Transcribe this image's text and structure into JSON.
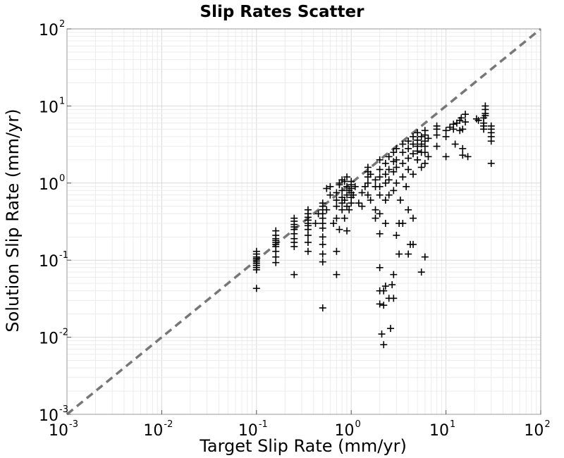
{
  "chart_data": {
    "type": "scatter",
    "title": "Slip Rates Scatter",
    "xlabel": "Target Slip Rate (mm/yr)",
    "ylabel": "Solution Slip Rate (mm/yr)",
    "xscale": "log",
    "yscale": "log",
    "xlim": [
      0.001,
      100
    ],
    "ylim": [
      0.001,
      100
    ],
    "x_ticks": [
      {
        "base": "10",
        "exp": "-3"
      },
      {
        "base": "10",
        "exp": "-2"
      },
      {
        "base": "10",
        "exp": "-1"
      },
      {
        "base": "10",
        "exp": "0"
      },
      {
        "base": "10",
        "exp": "1"
      },
      {
        "base": "10",
        "exp": "2"
      }
    ],
    "y_ticks": [
      {
        "base": "10",
        "exp": "-3"
      },
      {
        "base": "10",
        "exp": "-2"
      },
      {
        "base": "10",
        "exp": "-1"
      },
      {
        "base": "10",
        "exp": "0"
      },
      {
        "base": "10",
        "exp": "1"
      },
      {
        "base": "10",
        "exp": "2"
      }
    ],
    "grid": true,
    "marker": "+",
    "marker_color": "#000000",
    "reference_line": {
      "x": [
        0.001,
        100
      ],
      "y": [
        0.001,
        100
      ],
      "style": "dashed",
      "color": "#777777"
    },
    "points": [
      [
        0.1,
        0.043
      ],
      [
        0.1,
        0.075
      ],
      [
        0.1,
        0.08
      ],
      [
        0.1,
        0.085
      ],
      [
        0.1,
        0.09
      ],
      [
        0.1,
        0.095
      ],
      [
        0.1,
        0.1
      ],
      [
        0.1,
        0.105
      ],
      [
        0.1,
        0.11
      ],
      [
        0.1,
        0.12
      ],
      [
        0.1,
        0.13
      ],
      [
        0.16,
        0.093
      ],
      [
        0.16,
        0.11
      ],
      [
        0.16,
        0.13
      ],
      [
        0.16,
        0.15
      ],
      [
        0.16,
        0.16
      ],
      [
        0.16,
        0.17
      ],
      [
        0.16,
        0.18
      ],
      [
        0.16,
        0.19
      ],
      [
        0.16,
        0.21
      ],
      [
        0.16,
        0.24
      ],
      [
        0.25,
        0.065
      ],
      [
        0.25,
        0.15
      ],
      [
        0.25,
        0.17
      ],
      [
        0.25,
        0.19
      ],
      [
        0.25,
        0.22
      ],
      [
        0.25,
        0.25
      ],
      [
        0.25,
        0.27
      ],
      [
        0.25,
        0.29
      ],
      [
        0.25,
        0.32
      ],
      [
        0.25,
        0.35
      ],
      [
        0.35,
        0.13
      ],
      [
        0.35,
        0.17
      ],
      [
        0.35,
        0.21
      ],
      [
        0.35,
        0.25
      ],
      [
        0.35,
        0.28
      ],
      [
        0.35,
        0.3
      ],
      [
        0.35,
        0.33
      ],
      [
        0.35,
        0.36
      ],
      [
        0.35,
        0.4
      ],
      [
        0.35,
        0.45
      ],
      [
        0.5,
        0.024
      ],
      [
        0.5,
        0.095
      ],
      [
        0.5,
        0.12
      ],
      [
        0.5,
        0.16
      ],
      [
        0.5,
        0.2
      ],
      [
        0.5,
        0.26
      ],
      [
        0.5,
        0.3
      ],
      [
        0.5,
        0.35
      ],
      [
        0.5,
        0.4
      ],
      [
        0.5,
        0.45
      ],
      [
        0.5,
        0.5
      ],
      [
        0.5,
        0.55
      ],
      [
        0.45,
        0.4
      ],
      [
        0.42,
        0.3
      ],
      [
        0.55,
        0.45
      ],
      [
        0.6,
        0.7
      ],
      [
        0.65,
        0.3
      ],
      [
        0.7,
        0.065
      ],
      [
        0.7,
        0.13
      ],
      [
        0.7,
        0.35
      ],
      [
        0.7,
        0.5
      ],
      [
        0.7,
        0.6
      ],
      [
        0.7,
        0.75
      ],
      [
        0.75,
        0.25
      ],
      [
        0.8,
        0.45
      ],
      [
        0.8,
        0.55
      ],
      [
        0.8,
        0.65
      ],
      [
        0.8,
        0.8
      ],
      [
        0.85,
        0.35
      ],
      [
        0.85,
        0.6
      ],
      [
        0.9,
        0.24
      ],
      [
        0.9,
        0.5
      ],
      [
        0.9,
        0.7
      ],
      [
        0.9,
        0.9
      ],
      [
        0.95,
        0.45
      ],
      [
        0.95,
        0.8
      ],
      [
        1.0,
        0.55
      ],
      [
        1.0,
        0.65
      ],
      [
        1.0,
        0.75
      ],
      [
        1.0,
        0.85
      ],
      [
        1.0,
        0.95
      ],
      [
        1.0,
        1.05
      ],
      [
        1.05,
        0.7
      ],
      [
        1.1,
        0.9
      ],
      [
        0.6,
        0.9
      ],
      [
        0.55,
        0.85
      ],
      [
        0.75,
        1.0
      ],
      [
        0.85,
        1.05
      ],
      [
        0.8,
        1.1
      ],
      [
        0.9,
        1.2
      ],
      [
        0.75,
        0.95
      ],
      [
        1.2,
        0.55
      ],
      [
        1.3,
        0.5
      ],
      [
        1.3,
        0.75
      ],
      [
        1.4,
        0.9
      ],
      [
        1.5,
        0.7
      ],
      [
        1.5,
        1.0
      ],
      [
        1.5,
        1.2
      ],
      [
        1.5,
        1.4
      ],
      [
        1.5,
        1.6
      ],
      [
        1.6,
        0.6
      ],
      [
        1.6,
        1.3
      ],
      [
        1.8,
        0.35
      ],
      [
        1.8,
        0.45
      ],
      [
        1.8,
        0.9
      ],
      [
        1.8,
        1.1
      ],
      [
        2.0,
        0.027
      ],
      [
        2.0,
        0.04
      ],
      [
        2.0,
        0.08
      ],
      [
        2.0,
        0.22
      ],
      [
        2.0,
        0.4
      ],
      [
        2.0,
        0.7
      ],
      [
        2.0,
        0.9
      ],
      [
        2.0,
        1.2
      ],
      [
        2.0,
        1.5
      ],
      [
        2.0,
        2.0
      ],
      [
        2.1,
        0.011
      ],
      [
        2.2,
        0.008
      ],
      [
        2.2,
        0.026
      ],
      [
        2.2,
        0.04
      ],
      [
        2.3,
        0.046
      ],
      [
        2.3,
        0.3
      ],
      [
        2.3,
        0.6
      ],
      [
        2.3,
        1.0
      ],
      [
        2.3,
        1.3
      ],
      [
        2.3,
        1.8
      ],
      [
        2.5,
        0.032
      ],
      [
        2.5,
        0.7
      ],
      [
        2.5,
        1.1
      ],
      [
        2.5,
        1.5
      ],
      [
        2.5,
        2.2
      ],
      [
        2.6,
        0.013
      ],
      [
        2.7,
        0.048
      ],
      [
        2.8,
        0.032
      ],
      [
        2.8,
        0.065
      ],
      [
        2.8,
        0.8
      ],
      [
        2.8,
        1.4
      ],
      [
        2.8,
        1.9
      ],
      [
        2.8,
        2.5
      ],
      [
        3.0,
        0.21
      ],
      [
        3.0,
        1.0
      ],
      [
        3.0,
        1.6
      ],
      [
        3.0,
        2.0
      ],
      [
        3.0,
        2.8
      ],
      [
        3.2,
        0.12
      ],
      [
        3.2,
        0.3
      ],
      [
        3.3,
        0.6
      ],
      [
        3.5,
        0.3
      ],
      [
        3.5,
        1.2
      ],
      [
        3.5,
        1.8
      ],
      [
        3.5,
        2.5
      ],
      [
        3.5,
        3.2
      ],
      [
        3.8,
        0.9
      ],
      [
        4.0,
        0.12
      ],
      [
        4.0,
        0.45
      ],
      [
        4.0,
        1.5
      ],
      [
        4.0,
        2.1
      ],
      [
        4.0,
        2.8
      ],
      [
        4.0,
        3.5
      ],
      [
        4.2,
        0.16
      ],
      [
        4.5,
        0.16
      ],
      [
        4.5,
        0.35
      ],
      [
        4.5,
        1.3
      ],
      [
        4.5,
        2.4
      ],
      [
        4.5,
        3.2
      ],
      [
        4.5,
        4.0
      ],
      [
        5.0,
        2.0
      ],
      [
        5.0,
        2.6
      ],
      [
        5.0,
        3.0
      ],
      [
        5.0,
        3.6
      ],
      [
        5.0,
        4.5
      ],
      [
        5.5,
        0.07
      ],
      [
        5.5,
        1.6
      ],
      [
        5.5,
        2.5
      ],
      [
        5.5,
        3.2
      ],
      [
        5.5,
        4.0
      ],
      [
        6.0,
        0.11
      ],
      [
        6.0,
        1.8
      ],
      [
        6.0,
        2.5
      ],
      [
        6.0,
        3.0
      ],
      [
        6.0,
        3.5
      ],
      [
        6.0,
        4.2
      ],
      [
        6.0,
        4.8
      ],
      [
        6.5,
        2.2
      ],
      [
        6.5,
        3.8
      ],
      [
        8.0,
        3.0
      ],
      [
        8.0,
        4.2
      ],
      [
        8.0,
        5.0
      ],
      [
        8.0,
        5.5
      ],
      [
        10.0,
        2.2
      ],
      [
        10.0,
        4.0
      ],
      [
        10.0,
        4.8
      ],
      [
        11.0,
        5.3
      ],
      [
        12.0,
        5.8
      ],
      [
        12.0,
        5.0
      ],
      [
        12.5,
        3.2
      ],
      [
        13.0,
        6.0
      ],
      [
        14.0,
        4.8
      ],
      [
        14.0,
        6.5
      ],
      [
        14.5,
        7.0
      ],
      [
        15.0,
        2.3
      ],
      [
        15.0,
        2.8
      ],
      [
        15.0,
        5.0
      ],
      [
        16.0,
        6.2
      ],
      [
        16.0,
        7.8
      ],
      [
        17.0,
        2.2
      ],
      [
        21.0,
        6.8
      ],
      [
        22.0,
        6.5
      ],
      [
        25.0,
        5.0
      ],
      [
        25.0,
        5.5
      ],
      [
        25.0,
        6.0
      ],
      [
        25.0,
        7.0
      ],
      [
        26.0,
        7.5
      ],
      [
        26.0,
        8.0
      ],
      [
        26.0,
        9.0
      ],
      [
        26.0,
        10.0
      ],
      [
        30.0,
        1.8
      ],
      [
        30.0,
        3.5
      ],
      [
        30.0,
        4.0
      ],
      [
        30.0,
        4.5
      ],
      [
        30.0,
        5.0
      ],
      [
        30.0,
        5.5
      ]
    ]
  }
}
